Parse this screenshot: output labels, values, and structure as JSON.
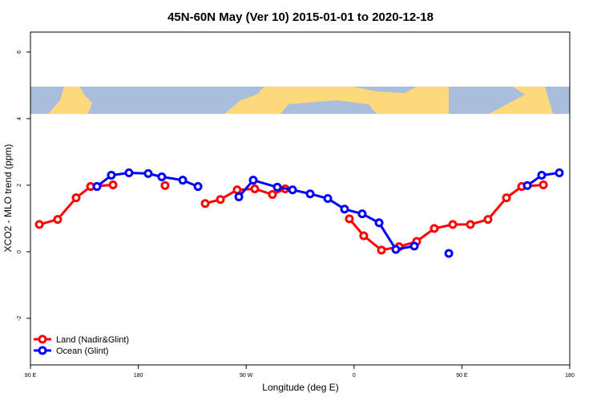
{
  "chart_data": {
    "type": "line",
    "title": "45N-60N May (Ver 10)   2015-01-01 to 2020-12-18",
    "x_label": "Longitude (deg E)",
    "y_label": "XCO2 - MLO trend (ppm)",
    "xlim": [
      90,
      540
    ],
    "ylim": [
      -3.4,
      6.6
    ],
    "xticks": [
      {
        "value": 90,
        "label": "90 E"
      },
      180,
      {
        "value": 270,
        "label": "90 W"
      },
      {
        "value": 360,
        "label": "0"
      },
      {
        "value": 450,
        "label": "90 E"
      },
      {
        "value": 540,
        "label": "180"
      }
    ],
    "yticks": [
      -2,
      0,
      2,
      4,
      6
    ],
    "legend": "bottom-left",
    "series": [
      {
        "name": "Land (Nadir&Glint)",
        "color": "#ff0000",
        "x": [
          97.4,
          112.7,
          128.1,
          140.2,
          158.9,
          null,
          202.3,
          null,
          235.8,
          248.5,
          262.5,
          277.2,
          291.9,
          302.6,
          null,
          356.1,
          368.1,
          382.9,
          397.6,
          412.3,
          427.0,
          442.4,
          457.1,
          471.8,
          487.2,
          499.9,
          518.0
        ],
        "values": [
          0.82,
          0.97,
          1.62,
          1.96,
          2.01,
          null,
          1.99,
          null,
          1.45,
          1.57,
          1.86,
          1.89,
          1.72,
          1.89,
          null,
          0.99,
          0.48,
          0.05,
          0.15,
          0.31,
          0.7,
          0.82,
          0.82,
          0.97,
          1.62,
          1.96,
          2.01
        ]
      },
      {
        "name": "Ocean (Glint)",
        "color": "#0000ff",
        "x": [
          145.5,
          157.5,
          172.2,
          188.3,
          199.6,
          217.1,
          229.8,
          null,
          263.9,
          275.9,
          296.0,
          308.7,
          323.4,
          338.1,
          352.1,
          366.8,
          380.9,
          394.9,
          410.3,
          null,
          439.1,
          null,
          504.6,
          516.6,
          531.3
        ],
        "values": [
          1.96,
          2.3,
          2.37,
          2.35,
          2.25,
          2.15,
          1.96,
          null,
          1.65,
          2.15,
          1.94,
          1.86,
          1.74,
          1.6,
          1.28,
          1.14,
          0.87,
          0.07,
          0.17,
          null,
          -0.05,
          null,
          1.99,
          2.3,
          2.37
        ]
      }
    ]
  }
}
